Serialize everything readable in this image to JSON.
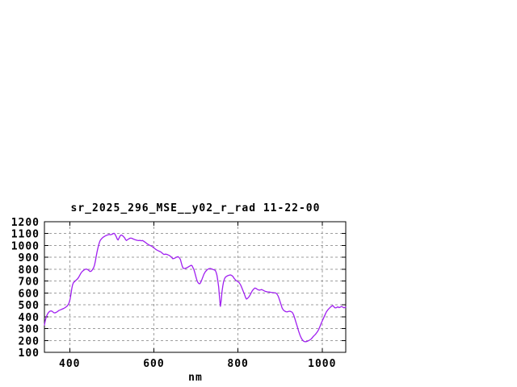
{
  "page": {
    "background": "#ffffff"
  },
  "chart_data": {
    "type": "line",
    "title": "sr_2025_296_MSE__y02_r_rad 11-22-00",
    "xlabel": "nm",
    "ylabel": "",
    "xlim": [
      340,
      1056
    ],
    "ylim": [
      100,
      1200
    ],
    "xticks": [
      400,
      600,
      800,
      1000
    ],
    "yticks": [
      100,
      200,
      300,
      400,
      500,
      600,
      700,
      800,
      900,
      1000,
      1100,
      1200
    ],
    "grid": true,
    "legend_position": "none",
    "colors": {
      "line": "#a020f0",
      "grid": "#9e9e9e",
      "border": "#000000",
      "text": "#000000",
      "background": "#ffffff"
    },
    "series": [
      {
        "points": [
          [
            340,
            330
          ],
          [
            342,
            365
          ],
          [
            344,
            395
          ],
          [
            347,
            420
          ],
          [
            350,
            437
          ],
          [
            353,
            446
          ],
          [
            356,
            449
          ],
          [
            359,
            444
          ],
          [
            362,
            434
          ],
          [
            365,
            432
          ],
          [
            368,
            437
          ],
          [
            371,
            443
          ],
          [
            374,
            452
          ],
          [
            378,
            458
          ],
          [
            382,
            464
          ],
          [
            386,
            470
          ],
          [
            390,
            478
          ],
          [
            394,
            490
          ],
          [
            397,
            505
          ],
          [
            399,
            520
          ],
          [
            401,
            548
          ],
          [
            403,
            588
          ],
          [
            405,
            638
          ],
          [
            407,
            670
          ],
          [
            409,
            687
          ],
          [
            412,
            697
          ],
          [
            415,
            707
          ],
          [
            418,
            716
          ],
          [
            421,
            730
          ],
          [
            424,
            750
          ],
          [
            427,
            768
          ],
          [
            430,
            782
          ],
          [
            433,
            790
          ],
          [
            436,
            798
          ],
          [
            439,
            801
          ],
          [
            442,
            799
          ],
          [
            445,
            791
          ],
          [
            448,
            781
          ],
          [
            451,
            783
          ],
          [
            454,
            795
          ],
          [
            457,
            814
          ],
          [
            459,
            835
          ],
          [
            461,
            866
          ],
          [
            463,
            908
          ],
          [
            465,
            945
          ],
          [
            467,
            978
          ],
          [
            469,
            1005
          ],
          [
            471,
            1028
          ],
          [
            473,
            1045
          ],
          [
            476,
            1057
          ],
          [
            479,
            1068
          ],
          [
            482,
            1075
          ],
          [
            485,
            1081
          ],
          [
            488,
            1086
          ],
          [
            491,
            1089
          ],
          [
            494,
            1093
          ],
          [
            497,
            1090
          ],
          [
            500,
            1094
          ],
          [
            503,
            1098
          ],
          [
            505,
            1103
          ],
          [
            507,
            1099
          ],
          [
            509,
            1086
          ],
          [
            511,
            1072
          ],
          [
            513,
            1054
          ],
          [
            515,
            1046
          ],
          [
            517,
            1060
          ],
          [
            519,
            1075
          ],
          [
            521,
            1085
          ],
          [
            523,
            1088
          ],
          [
            525,
            1084
          ],
          [
            528,
            1075
          ],
          [
            531,
            1062
          ],
          [
            533,
            1048
          ],
          [
            535,
            1042
          ],
          [
            537,
            1047
          ],
          [
            540,
            1055
          ],
          [
            543,
            1061
          ],
          [
            546,
            1062
          ],
          [
            549,
            1058
          ],
          [
            552,
            1053
          ],
          [
            555,
            1049
          ],
          [
            558,
            1046
          ],
          [
            561,
            1043
          ],
          [
            564,
            1041
          ],
          [
            567,
            1043
          ],
          [
            570,
            1040
          ],
          [
            573,
            1042
          ],
          [
            576,
            1036
          ],
          [
            579,
            1028
          ],
          [
            582,
            1020
          ],
          [
            585,
            1012
          ],
          [
            588,
            1005
          ],
          [
            591,
            1000
          ],
          [
            594,
            996
          ],
          [
            597,
            988
          ],
          [
            600,
            980
          ],
          [
            603,
            972
          ],
          [
            606,
            964
          ],
          [
            609,
            958
          ],
          [
            612,
            953
          ],
          [
            615,
            948
          ],
          [
            618,
            942
          ],
          [
            621,
            932
          ],
          [
            624,
            924
          ],
          [
            627,
            927
          ],
          [
            630,
            926
          ],
          [
            633,
            922
          ],
          [
            636,
            917
          ],
          [
            639,
            910
          ],
          [
            642,
            901
          ],
          [
            645,
            888
          ],
          [
            648,
            891
          ],
          [
            651,
            896
          ],
          [
            654,
            902
          ],
          [
            657,
            906
          ],
          [
            660,
            899
          ],
          [
            663,
            883
          ],
          [
            665,
            857
          ],
          [
            667,
            830
          ],
          [
            669,
            812
          ],
          [
            671,
            806
          ],
          [
            674,
            806
          ],
          [
            677,
            810
          ],
          [
            680,
            815
          ],
          [
            683,
            822
          ],
          [
            686,
            828
          ],
          [
            689,
            833
          ],
          [
            691,
            828
          ],
          [
            693,
            812
          ],
          [
            695,
            800
          ],
          [
            697,
            775
          ],
          [
            699,
            750
          ],
          [
            701,
            722
          ],
          [
            703,
            700
          ],
          [
            705,
            688
          ],
          [
            707,
            679
          ],
          [
            709,
            677
          ],
          [
            711,
            686
          ],
          [
            713,
            702
          ],
          [
            716,
            730
          ],
          [
            719,
            757
          ],
          [
            722,
            777
          ],
          [
            725,
            790
          ],
          [
            728,
            799
          ],
          [
            731,
            804
          ],
          [
            734,
            806
          ],
          [
            737,
            803
          ],
          [
            740,
            799
          ],
          [
            743,
            795
          ],
          [
            746,
            790
          ],
          [
            748,
            775
          ],
          [
            750,
            748
          ],
          [
            752,
            705
          ],
          [
            754,
            650
          ],
          [
            756,
            565
          ],
          [
            758,
            487
          ],
          [
            760,
            535
          ],
          [
            762,
            610
          ],
          [
            764,
            663
          ],
          [
            766,
            698
          ],
          [
            768,
            720
          ],
          [
            770,
            733
          ],
          [
            773,
            741
          ],
          [
            776,
            746
          ],
          [
            779,
            750
          ],
          [
            782,
            752
          ],
          [
            785,
            748
          ],
          [
            788,
            738
          ],
          [
            791,
            722
          ],
          [
            794,
            710
          ],
          [
            797,
            701
          ],
          [
            800,
            694
          ],
          [
            803,
            685
          ],
          [
            806,
            668
          ],
          [
            809,
            645
          ],
          [
            812,
            618
          ],
          [
            815,
            590
          ],
          [
            818,
            562
          ],
          [
            820,
            549
          ],
          [
            822,
            553
          ],
          [
            825,
            563
          ],
          [
            828,
            578
          ],
          [
            831,
            600
          ],
          [
            834,
            618
          ],
          [
            837,
            632
          ],
          [
            840,
            641
          ],
          [
            843,
            638
          ],
          [
            846,
            630
          ],
          [
            849,
            625
          ],
          [
            852,
            624
          ],
          [
            855,
            628
          ],
          [
            858,
            626
          ],
          [
            861,
            620
          ],
          [
            864,
            615
          ],
          [
            867,
            611
          ],
          [
            870,
            609
          ],
          [
            874,
            608
          ],
          [
            878,
            605
          ],
          [
            882,
            603
          ],
          [
            886,
            602
          ],
          [
            890,
            600
          ],
          [
            893,
            589
          ],
          [
            896,
            570
          ],
          [
            899,
            538
          ],
          [
            902,
            505
          ],
          [
            905,
            472
          ],
          [
            908,
            455
          ],
          [
            911,
            447
          ],
          [
            914,
            442
          ],
          [
            917,
            441
          ],
          [
            920,
            444
          ],
          [
            923,
            446
          ],
          [
            926,
            443
          ],
          [
            929,
            437
          ],
          [
            931,
            424
          ],
          [
            933,
            407
          ],
          [
            935,
            384
          ],
          [
            938,
            350
          ],
          [
            941,
            315
          ],
          [
            944,
            278
          ],
          [
            947,
            248
          ],
          [
            950,
            222
          ],
          [
            953,
            205
          ],
          [
            956,
            194
          ],
          [
            959,
            189
          ],
          [
            962,
            190
          ],
          [
            965,
            194
          ],
          [
            968,
            199
          ],
          [
            971,
            205
          ],
          [
            974,
            213
          ],
          [
            977,
            225
          ],
          [
            980,
            238
          ],
          [
            983,
            248
          ],
          [
            986,
            260
          ],
          [
            989,
            275
          ],
          [
            992,
            295
          ],
          [
            995,
            320
          ],
          [
            998,
            347
          ],
          [
            1001,
            370
          ],
          [
            1004,
            393
          ],
          [
            1007,
            418
          ],
          [
            1010,
            440
          ],
          [
            1013,
            456
          ],
          [
            1016,
            468
          ],
          [
            1019,
            478
          ],
          [
            1022,
            488
          ],
          [
            1025,
            494
          ],
          [
            1027,
            488
          ],
          [
            1029,
            479
          ],
          [
            1031,
            474
          ],
          [
            1034,
            476
          ],
          [
            1037,
            483
          ],
          [
            1040,
            477
          ],
          [
            1043,
            480
          ],
          [
            1046,
            487
          ],
          [
            1049,
            480
          ],
          [
            1052,
            475
          ],
          [
            1054,
            478
          ],
          [
            1056,
            481
          ]
        ]
      }
    ]
  }
}
